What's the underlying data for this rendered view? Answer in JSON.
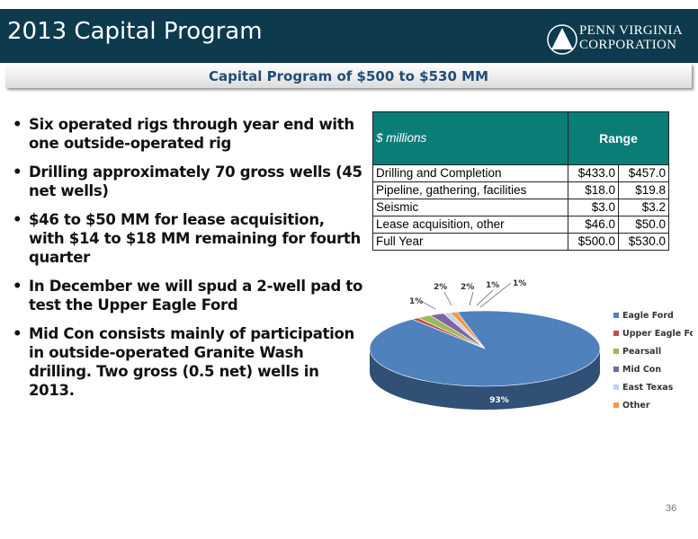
{
  "header": {
    "title": "2013 Capital Program"
  },
  "logo": {
    "line1": "PENN VIRGINIA",
    "line2": "CORPORATION"
  },
  "subtitle": "Capital Program of $500 to $530 MM",
  "bullets": [
    "Six operated rigs through year end with one outside-operated rig",
    "Drilling approximately 70 gross wells (45 net wells)",
    "$46 to $50 MM for lease acquisition, with $14 to $18 MM remaining for fourth quarter",
    "In December we will spud a 2-well pad to test the Upper Eagle Ford",
    "Mid Con consists mainly of participation in outside-operated Granite Wash drilling.  Two gross (0.5 net) wells in 2013."
  ],
  "table": {
    "header_label": "$ millions",
    "header_range": "Range",
    "rows": [
      {
        "label": "Drilling and Completion",
        "low": "$433.0",
        "high": "$457.0"
      },
      {
        "label": "Pipeline, gathering, facilities",
        "low": "$18.0",
        "high": "$19.8"
      },
      {
        "label": "Seismic",
        "low": "$3.0",
        "high": "$3.2"
      },
      {
        "label": "Lease acquisition, other",
        "low": "$46.0",
        "high": "$50.0"
      },
      {
        "label": "Full Year",
        "low": "$500.0",
        "high": "$530.0"
      }
    ]
  },
  "chart_data": {
    "type": "pie",
    "title": "",
    "categories": [
      "Eagle Ford",
      "Upper Eagle Ford",
      "Pearsall",
      "Mid Con",
      "East Texas",
      "Other"
    ],
    "values": [
      93,
      1,
      2,
      2,
      1,
      1
    ],
    "labels": [
      "93%",
      "1%",
      "2%",
      "2%",
      "1%",
      "1%"
    ],
    "colors": [
      "#4f81bd",
      "#c0504d",
      "#9bbb59",
      "#8064a2",
      "#c3d3e6",
      "#f79646"
    ],
    "legend": "right"
  },
  "page_number": "36"
}
